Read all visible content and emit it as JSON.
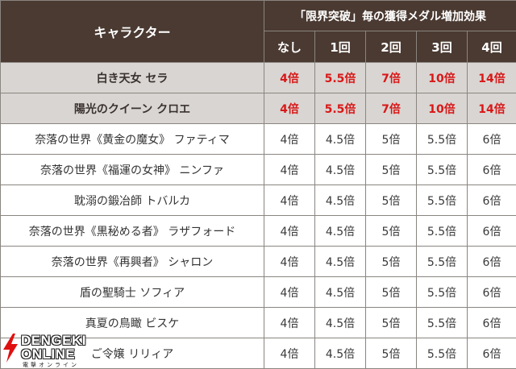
{
  "header": {
    "character": "キャラクター",
    "group": "「限界突破」毎の獲得メダル増加効果",
    "columns": [
      "なし",
      "1回",
      "2回",
      "3回",
      "4回"
    ]
  },
  "rows": [
    {
      "name": "白き天女 セラ",
      "values": [
        "4倍",
        "5.5倍",
        "7倍",
        "10倍",
        "14倍"
      ],
      "highlight": true
    },
    {
      "name": "陽光のクイーン クロエ",
      "values": [
        "4倍",
        "5.5倍",
        "7倍",
        "10倍",
        "14倍"
      ],
      "highlight": true
    },
    {
      "name": "奈落の世界《黄金の魔女》 ファティマ",
      "values": [
        "4倍",
        "4.5倍",
        "5倍",
        "5.5倍",
        "6倍"
      ],
      "highlight": false
    },
    {
      "name": "奈落の世界《福運の女神》 ニンファ",
      "values": [
        "4倍",
        "4.5倍",
        "5倍",
        "5.5倍",
        "6倍"
      ],
      "highlight": false
    },
    {
      "name": "耽溺の鍛冶師 トバルカ",
      "values": [
        "4倍",
        "4.5倍",
        "5倍",
        "5.5倍",
        "6倍"
      ],
      "highlight": false
    },
    {
      "name": "奈落の世界《黒秘める者》 ラザフォード",
      "values": [
        "4倍",
        "4.5倍",
        "5倍",
        "5.5倍",
        "6倍"
      ],
      "highlight": false
    },
    {
      "name": "奈落の世界《再興者》 シャロン",
      "values": [
        "4倍",
        "4.5倍",
        "5倍",
        "5.5倍",
        "6倍"
      ],
      "highlight": false
    },
    {
      "name": "盾の聖騎士 ソフィア",
      "values": [
        "4倍",
        "4.5倍",
        "5倍",
        "5.5倍",
        "6倍"
      ],
      "highlight": false
    },
    {
      "name": "真夏の鳥瞰 ビスケ",
      "values": [
        "4倍",
        "4.5倍",
        "5倍",
        "5.5倍",
        "6倍"
      ],
      "highlight": false
    },
    {
      "name": "ご令嬢 リリィア",
      "values": [
        "4倍",
        "4.5倍",
        "5倍",
        "5.5倍",
        "6倍"
      ],
      "highlight": false
    }
  ],
  "watermark": {
    "line1": "DENGEKI",
    "line2": "ONLINE",
    "line3": "電撃オンライン"
  },
  "colors": {
    "header_bg": "#4a3a31",
    "highlight_bg": "#d9d5d2",
    "highlight_text": "#d81818",
    "logo_red": "#e01010"
  }
}
